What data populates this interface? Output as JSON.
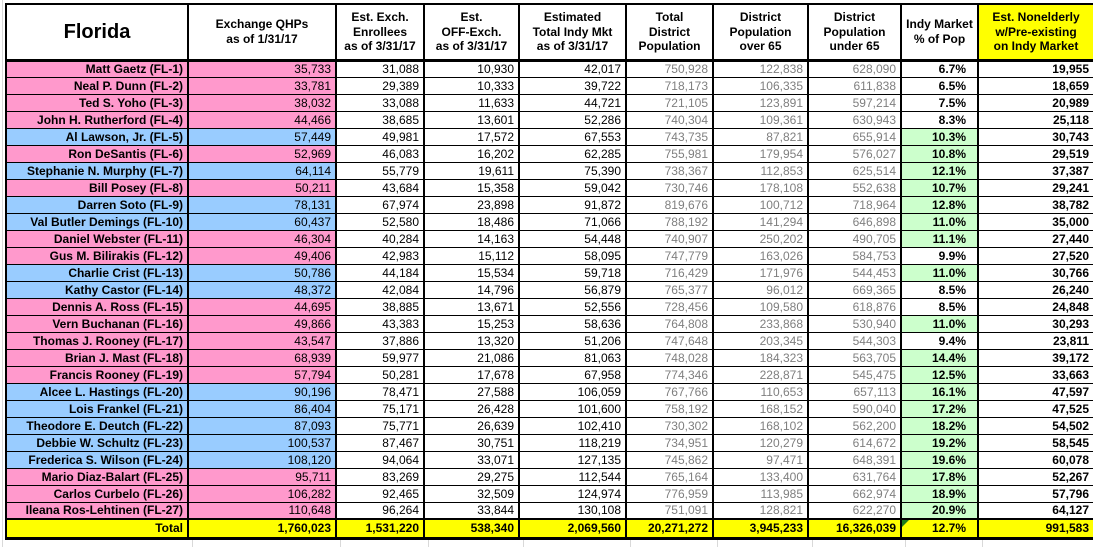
{
  "colors": {
    "republican_row_pink": "#FF99CC",
    "democrat_row_blue": "#99CCFF",
    "green_highlight": "#CCFFCC",
    "total_row_yellow": "#FFFF00",
    "population_text_gray": "#7F7F7F",
    "corner_flag_green": "#1E7B1E"
  },
  "table": {
    "state_label": "Florida",
    "headers": [
      "Exchange QHPs\nas of 1/31/17",
      "Est. Exch.\nEnrollees\nas of 3/31/17",
      "Est.\nOFF-Exch.\nas of 3/31/17",
      "Estimated\nTotal Indy Mkt\nas of 3/31/17",
      "Total\nDistrict\nPopulation",
      "District\nPopulation\nover 65",
      "District\nPopulation\nunder 65",
      "Indy Market\n% of Pop",
      "Est. Nonelderly\nw/Pre-existing\non Indy Market"
    ],
    "green_rule_min_pct": 10,
    "rows": [
      {
        "name": "Matt Gaetz (FL-1)",
        "party": "R",
        "cells": [
          "35,733",
          "31,088",
          "10,930",
          "42,017",
          "750,928",
          "122,838",
          "628,090",
          "6.7%",
          "19,955"
        ]
      },
      {
        "name": "Neal P. Dunn (FL-2)",
        "party": "R",
        "cells": [
          "33,781",
          "29,389",
          "10,333",
          "39,722",
          "718,173",
          "106,335",
          "611,838",
          "6.5%",
          "18,659"
        ]
      },
      {
        "name": "Ted S. Yoho (FL-3)",
        "party": "R",
        "cells": [
          "38,032",
          "33,088",
          "11,633",
          "44,721",
          "721,105",
          "123,891",
          "597,214",
          "7.5%",
          "20,989"
        ]
      },
      {
        "name": "John H. Rutherford (FL-4)",
        "party": "R",
        "cells": [
          "44,466",
          "38,685",
          "13,601",
          "52,286",
          "740,304",
          "109,361",
          "630,943",
          "8.3%",
          "25,118"
        ]
      },
      {
        "name": "Al Lawson, Jr. (FL-5)",
        "party": "D",
        "cells": [
          "57,449",
          "49,981",
          "17,572",
          "67,553",
          "743,735",
          "87,821",
          "655,914",
          "10.3%",
          "30,743"
        ]
      },
      {
        "name": "Ron DeSantis (FL-6)",
        "party": "R",
        "cells": [
          "52,969",
          "46,083",
          "16,202",
          "62,285",
          "755,981",
          "179,954",
          "576,027",
          "10.8%",
          "29,519"
        ]
      },
      {
        "name": "Stephanie N. Murphy (FL-7)",
        "party": "D",
        "cells": [
          "64,114",
          "55,779",
          "19,611",
          "75,390",
          "738,367",
          "112,853",
          "625,514",
          "12.1%",
          "37,387"
        ]
      },
      {
        "name": "Bill Posey (FL-8)",
        "party": "R",
        "cells": [
          "50,211",
          "43,684",
          "15,358",
          "59,042",
          "730,746",
          "178,108",
          "552,638",
          "10.7%",
          "29,241"
        ]
      },
      {
        "name": "Darren Soto (FL-9)",
        "party": "D",
        "cells": [
          "78,131",
          "67,974",
          "23,898",
          "91,872",
          "819,676",
          "100,712",
          "718,964",
          "12.8%",
          "38,782"
        ]
      },
      {
        "name": "Val Butler Demings (FL-10)",
        "party": "D",
        "cells": [
          "60,437",
          "52,580",
          "18,486",
          "71,066",
          "788,192",
          "141,294",
          "646,898",
          "11.0%",
          "35,000"
        ]
      },
      {
        "name": "Daniel Webster (FL-11)",
        "party": "R",
        "cells": [
          "46,304",
          "40,284",
          "14,163",
          "54,448",
          "740,907",
          "250,202",
          "490,705",
          "11.1%",
          "27,440"
        ]
      },
      {
        "name": "Gus M. Bilirakis (FL-12)",
        "party": "R",
        "cells": [
          "49,406",
          "42,983",
          "15,112",
          "58,095",
          "747,779",
          "163,026",
          "584,753",
          "9.9%",
          "27,520"
        ]
      },
      {
        "name": "Charlie Crist (FL-13)",
        "party": "D",
        "cells": [
          "50,786",
          "44,184",
          "15,534",
          "59,718",
          "716,429",
          "171,976",
          "544,453",
          "11.0%",
          "30,766"
        ]
      },
      {
        "name": "Kathy Castor (FL-14)",
        "party": "D",
        "cells": [
          "48,372",
          "42,084",
          "14,796",
          "56,879",
          "765,377",
          "96,012",
          "669,365",
          "8.5%",
          "26,240"
        ]
      },
      {
        "name": "Dennis A. Ross (FL-15)",
        "party": "R",
        "cells": [
          "44,695",
          "38,885",
          "13,671",
          "52,556",
          "728,456",
          "109,580",
          "618,876",
          "8.5%",
          "24,848"
        ]
      },
      {
        "name": "Vern Buchanan (FL-16)",
        "party": "R",
        "cells": [
          "49,866",
          "43,383",
          "15,253",
          "58,636",
          "764,808",
          "233,868",
          "530,940",
          "11.0%",
          "30,293"
        ]
      },
      {
        "name": "Thomas J. Rooney (FL-17)",
        "party": "R",
        "cells": [
          "43,547",
          "37,886",
          "13,320",
          "51,206",
          "747,648",
          "203,345",
          "544,303",
          "9.4%",
          "23,811"
        ]
      },
      {
        "name": "Brian J. Mast (FL-18)",
        "party": "R",
        "cells": [
          "68,939",
          "59,977",
          "21,086",
          "81,063",
          "748,028",
          "184,323",
          "563,705",
          "14.4%",
          "39,172"
        ]
      },
      {
        "name": "Francis Rooney (FL-19)",
        "party": "R",
        "cells": [
          "57,794",
          "50,281",
          "17,678",
          "67,958",
          "774,346",
          "228,871",
          "545,475",
          "12.5%",
          "33,663"
        ]
      },
      {
        "name": "Alcee L. Hastings (FL-20)",
        "party": "D",
        "cells": [
          "90,196",
          "78,471",
          "27,588",
          "106,059",
          "767,766",
          "110,653",
          "657,113",
          "16.1%",
          "47,597"
        ]
      },
      {
        "name": "Lois Frankel (FL-21)",
        "party": "D",
        "cells": [
          "86,404",
          "75,171",
          "26,428",
          "101,600",
          "758,192",
          "168,152",
          "590,040",
          "17.2%",
          "47,525"
        ]
      },
      {
        "name": "Theodore E. Deutch (FL-22)",
        "party": "D",
        "cells": [
          "87,093",
          "75,771",
          "26,639",
          "102,410",
          "730,302",
          "168,102",
          "562,200",
          "18.2%",
          "54,502"
        ]
      },
      {
        "name": "Debbie W. Schultz (FL-23)",
        "party": "D",
        "cells": [
          "100,537",
          "87,467",
          "30,751",
          "118,219",
          "734,951",
          "120,279",
          "614,672",
          "19.2%",
          "58,545"
        ]
      },
      {
        "name": "Frederica S. Wilson (FL-24)",
        "party": "D",
        "cells": [
          "108,120",
          "94,064",
          "33,071",
          "127,135",
          "745,862",
          "97,471",
          "648,391",
          "19.6%",
          "60,078"
        ]
      },
      {
        "name": "Mario Diaz-Balart (FL-25)",
        "party": "R",
        "cells": [
          "95,711",
          "83,269",
          "29,275",
          "112,544",
          "765,164",
          "133,400",
          "631,764",
          "17.8%",
          "52,267"
        ]
      },
      {
        "name": "Carlos Curbelo (FL-26)",
        "party": "R",
        "cells": [
          "106,282",
          "92,465",
          "32,509",
          "124,974",
          "776,959",
          "113,985",
          "662,974",
          "18.9%",
          "57,796"
        ]
      },
      {
        "name": "Ileana Ros-Lehtinen (FL-27)",
        "party": "R",
        "cells": [
          "110,648",
          "96,264",
          "33,844",
          "130,108",
          "751,091",
          "128,821",
          "622,270",
          "20.9%",
          "64,127"
        ]
      }
    ],
    "total": {
      "label": "Total",
      "cells": [
        "1,760,023",
        "1,531,220",
        "538,340",
        "2,069,560",
        "20,271,272",
        "3,945,233",
        "16,326,039",
        "12.7%",
        "991,583"
      ]
    }
  }
}
